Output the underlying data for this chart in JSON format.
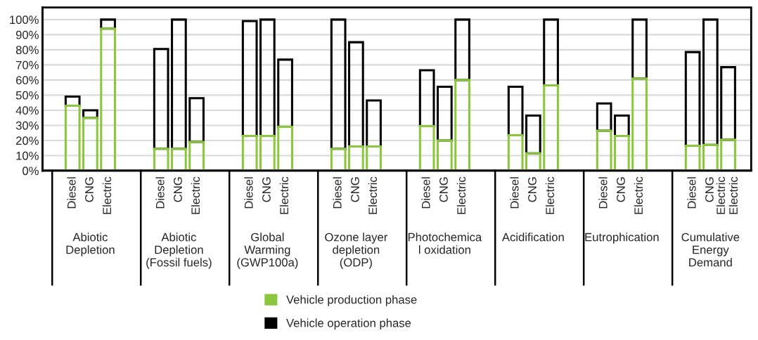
{
  "chart_data": {
    "type": "bar",
    "stacked": true,
    "categories": [
      "Diesel",
      "CNG",
      "Electric",
      null,
      null,
      "Diesel",
      "CNG",
      "Electric",
      null,
      null,
      "Diesel",
      "CNG",
      "Electric",
      null,
      null,
      "Diesel",
      "CNG",
      "Electric",
      null,
      null,
      "Diesel",
      "CNG",
      "Electric",
      null,
      null,
      "Diesel",
      "CNG",
      "Electric",
      null,
      null,
      "Diesel",
      "CNG",
      "Electric",
      null,
      null,
      "Diesel",
      "CNG",
      "Electric\nElectric",
      null,
      null
    ],
    "series": [
      {
        "name": "Vehicle production phase",
        "color": "#8cc63e",
        "values": [
          43,
          35,
          94,
          null,
          null,
          14.5,
          14.5,
          19,
          null,
          null,
          23,
          23,
          29,
          null,
          null,
          14.5,
          16,
          16,
          null,
          null,
          29.5,
          20,
          60,
          null,
          null,
          23.5,
          11.5,
          56.5,
          null,
          null,
          26.5,
          23,
          61,
          null,
          null,
          16.5,
          17,
          20.5,
          null,
          null
        ]
      },
      {
        "name": "Vehicle operation phase",
        "color": "#000000",
        "values": [
          6,
          5,
          6,
          null,
          null,
          66,
          85.5,
          29,
          null,
          null,
          76,
          77,
          44.5,
          null,
          null,
          85.5,
          69,
          30.5,
          null,
          null,
          37,
          35.5,
          40,
          null,
          null,
          32,
          25,
          43.5,
          null,
          null,
          18,
          13.5,
          39,
          null,
          null,
          62,
          83,
          48,
          null,
          null
        ]
      }
    ],
    "annotations": [
      "Abiotic\nDepletion",
      "Abiotic\nDepletion\n(Fossil fuels)",
      "Global\nWarming\n(GWP100a)",
      "Ozone layer\ndepletion\n(ODP)",
      "Photochemica\nl oxidation",
      "Acidification",
      "Eutrophication",
      "Cumulative\nEnergy\nDemand"
    ],
    "ylim": [
      0,
      108
    ],
    "yticks": [
      {
        "value": 0,
        "label": "0%"
      },
      {
        "value": 10,
        "label": "10%"
      },
      {
        "value": 20,
        "label": "20%"
      },
      {
        "value": 30,
        "label": "30%"
      },
      {
        "value": 40,
        "label": "40%"
      },
      {
        "value": 50,
        "label": "50%"
      },
      {
        "value": 60,
        "label": "60%"
      },
      {
        "value": 70,
        "label": "70%"
      },
      {
        "value": 80,
        "label": "80%"
      },
      {
        "value": 90,
        "label": "90%"
      },
      {
        "value": 100,
        "label": "100%"
      }
    ],
    "grid": "y",
    "legend": "bottom"
  }
}
